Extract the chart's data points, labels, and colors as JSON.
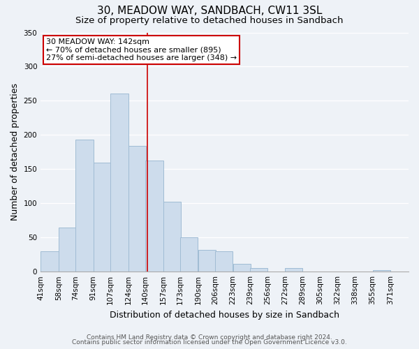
{
  "title": "30, MEADOW WAY, SANDBACH, CW11 3SL",
  "subtitle": "Size of property relative to detached houses in Sandbach",
  "xlabel": "Distribution of detached houses by size in Sandbach",
  "ylabel": "Number of detached properties",
  "bar_left_edges": [
    41,
    58,
    74,
    91,
    107,
    124,
    140,
    157,
    173,
    190,
    206,
    223,
    239,
    256,
    272,
    289,
    305,
    322,
    338,
    355
  ],
  "bar_heights": [
    30,
    65,
    193,
    160,
    261,
    184,
    163,
    102,
    50,
    32,
    30,
    11,
    5,
    0,
    5,
    0,
    0,
    0,
    0,
    2
  ],
  "bin_width": 17,
  "bar_color": "#cddcec",
  "bar_edge_color": "#a0bcd4",
  "property_line_x": 142,
  "property_line_color": "#cc0000",
  "annotation_line1": "30 MEADOW WAY: 142sqm",
  "annotation_line2": "← 70% of detached houses are smaller (895)",
  "annotation_line3": "27% of semi-detached houses are larger (348) →",
  "annotation_box_color": "#cc0000",
  "annotation_box_bg": "#ffffff",
  "ylim": [
    0,
    350
  ],
  "yticks": [
    0,
    50,
    100,
    150,
    200,
    250,
    300,
    350
  ],
  "xtick_labels": [
    "41sqm",
    "58sqm",
    "74sqm",
    "91sqm",
    "107sqm",
    "124sqm",
    "140sqm",
    "157sqm",
    "173sqm",
    "190sqm",
    "206sqm",
    "223sqm",
    "239sqm",
    "256sqm",
    "272sqm",
    "289sqm",
    "305sqm",
    "322sqm",
    "338sqm",
    "355sqm",
    "371sqm"
  ],
  "footer1": "Contains HM Land Registry data © Crown copyright and database right 2024.",
  "footer2": "Contains public sector information licensed under the Open Government Licence v3.0.",
  "background_color": "#eef2f7",
  "grid_color": "#ffffff",
  "title_fontsize": 11,
  "subtitle_fontsize": 9.5,
  "axis_label_fontsize": 9,
  "tick_fontsize": 7.5,
  "annotation_fontsize": 8,
  "footer_fontsize": 6.5
}
